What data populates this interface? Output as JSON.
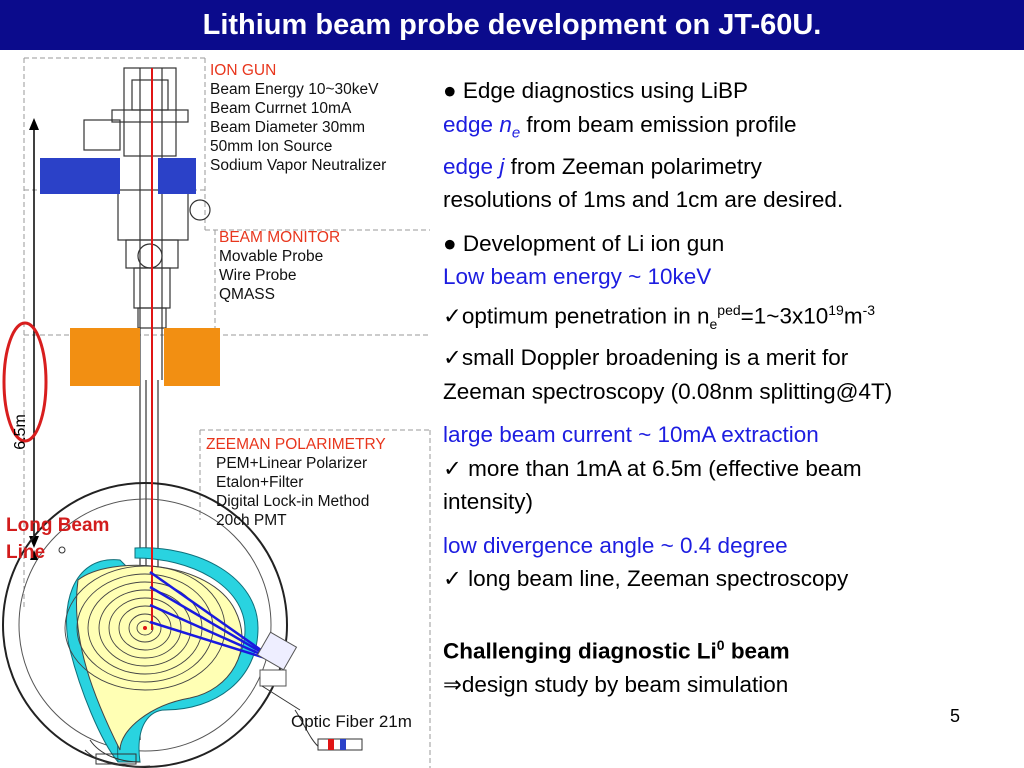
{
  "slide": {
    "title": "Lithium beam probe development on JT-60U.",
    "page_number": "5"
  },
  "diagram": {
    "ion_gun": {
      "heading": "ION GUN",
      "lines": [
        "Beam Energy 10~30keV",
        "Beam Currnet 10mA",
        "Beam Diameter 30mm",
        "50mm Ion Source",
        "Sodium Vapor Neutralizer"
      ]
    },
    "beam_monitor": {
      "heading": "BEAM MONITOR",
      "lines": [
        "Movable Probe",
        "Wire Probe",
        "QMASS"
      ]
    },
    "zeeman": {
      "heading": "ZEEMAN POLARIMETRY",
      "lines": [
        "PEM+Linear Polarizer",
        "Etalon+Filter",
        "Digital Lock-in Method",
        "20ch PMT"
      ]
    },
    "long_beam_line": [
      "Long Beam",
      "Line"
    ],
    "length_label": "6.5m",
    "optic_fiber": "Optic Fiber 21m",
    "colors": {
      "beam": "#e01515",
      "sightline": "#1a1adf",
      "plasma_fill": "#ffffb4",
      "wall_fill": "#29d3e0",
      "magnet": "#2b41c8",
      "coil": "#f28f12",
      "ellipse": "#d81e1e"
    }
  },
  "text": {
    "s1_bullet": "Edge diagnostics using LiBP",
    "s1_edge_ne_a": "edge ",
    "s1_edge_ne_n": "n",
    "s1_edge_ne_sub": "e",
    "s1_edge_ne_rest": " from beam emission profile",
    "s1_edge_j_a": "edge ",
    "s1_edge_j_j": "j",
    "s1_edge_j_rest": " from Zeeman polarimetry",
    "s1_res": "resolutions of 1ms and 1cm are desired.",
    "s2_bullet": "Development of Li ion gun",
    "s2_low": "Low beam energy ~ 10keV",
    "s2_opt_a": "✓optimum penetration in n",
    "s2_opt_sub": "e",
    "s2_opt_sup1": "ped",
    "s2_opt_b": "=1~3x10",
    "s2_opt_sup2": "19",
    "s2_opt_c": "m",
    "s2_opt_sup3": "-3",
    "s2_small": "✓small Doppler broadening is a merit for",
    "s2_zeeman": "Zeeman spectroscopy (0.08nm splitting@4T)",
    "s3_large": "large beam current ~ 10mA extraction",
    "s3_more": "✓ more than 1mA at 6.5m (effective beam",
    "s3_int": "intensity)",
    "s4_low": "low divergence angle ~ 0.4 degree",
    "s4_long": "✓ long beam line, Zeeman spectroscopy",
    "s5_chal_a": "Challenging diagnostic Li",
    "s5_chal_sup": "0",
    "s5_chal_b": " beam",
    "s5_design": "⇒design study by beam simulation"
  }
}
